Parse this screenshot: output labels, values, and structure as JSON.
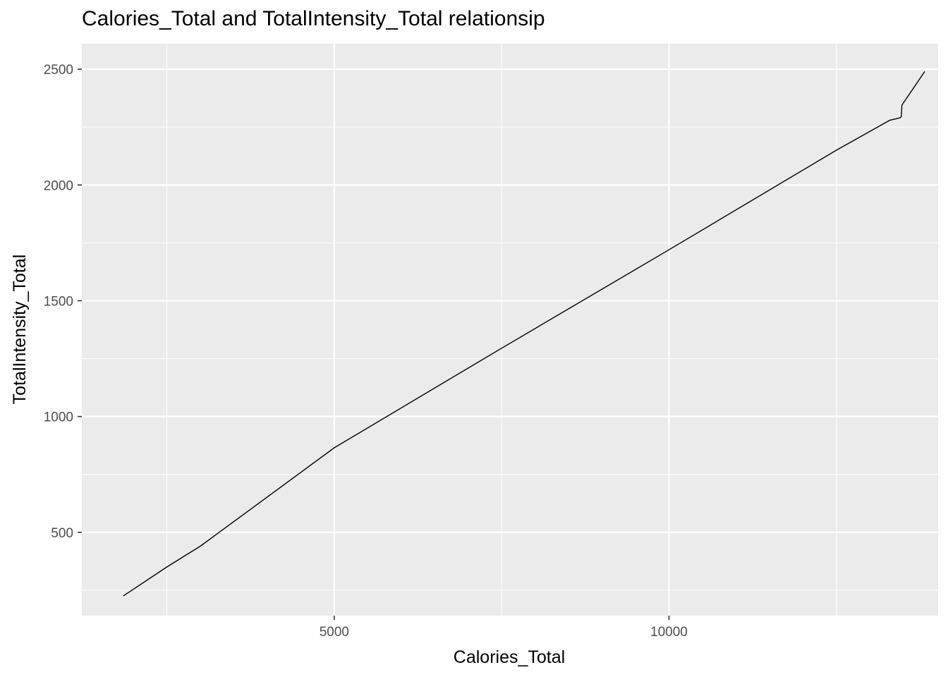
{
  "chart_data": {
    "type": "line",
    "title": "Calories_Total and TotalIntensity_Total relationsip",
    "xlabel": "Calories_Total",
    "ylabel": "TotalIntensity_Total",
    "xlim": [
      1230,
      14020
    ],
    "ylim": [
      140,
      2610
    ],
    "x_ticks": [
      5000,
      10000
    ],
    "x_minor_ticks": [
      2500,
      7500,
      12500
    ],
    "y_ticks": [
      500,
      1000,
      1500,
      2000,
      2500
    ],
    "y_minor_ticks": [
      250,
      750,
      1250,
      1750,
      2250
    ],
    "grid": true,
    "colors": {
      "panel": "#ebebeb",
      "grid": "#ffffff",
      "line": "#000000",
      "tick_text": "#4d4d4d"
    },
    "series": [
      {
        "x": [
          1850,
          2500,
          3000,
          5000,
          7500,
          10000,
          12500,
          13300,
          13450,
          13470,
          13480,
          13820
        ],
        "y": [
          225,
          350,
          440,
          865,
          1295,
          1720,
          2150,
          2280,
          2290,
          2295,
          2345,
          2490
        ]
      }
    ]
  }
}
